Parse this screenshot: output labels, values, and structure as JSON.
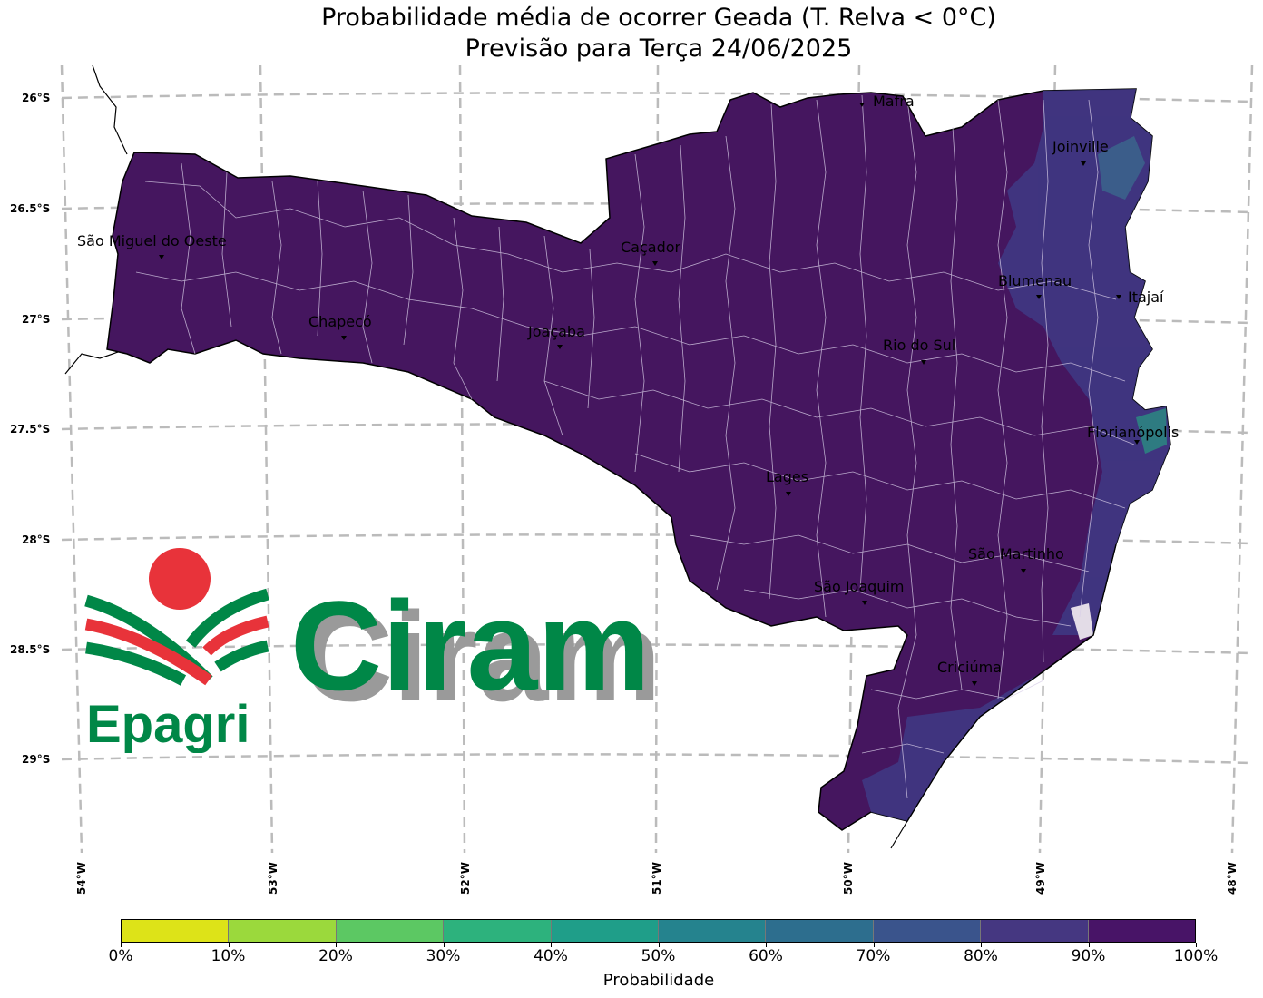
{
  "title": {
    "line1": "Probabilidade média de ocorrer Geada (T. Relva < 0°C)",
    "line2": "Previsão para Terça 24/06/2025"
  },
  "axes": {
    "lat_labels": [
      "26°S",
      "26.5°S",
      "27°S",
      "27.5°S",
      "28°S",
      "28.5°S",
      "29°S"
    ],
    "lon_labels": [
      "54°W",
      "53°W",
      "52°W",
      "51°W",
      "50°W",
      "49°W",
      "48°W"
    ]
  },
  "cities": [
    {
      "name": "Mafra"
    },
    {
      "name": "Joinville"
    },
    {
      "name": "São Miguel do Oeste"
    },
    {
      "name": "Caçador"
    },
    {
      "name": "Blumenau"
    },
    {
      "name": "Itajaí"
    },
    {
      "name": "Chapecó"
    },
    {
      "name": "Joaçaba"
    },
    {
      "name": "Rio do Sul"
    },
    {
      "name": "Florianópolis"
    },
    {
      "name": "Lages"
    },
    {
      "name": "São Martinho"
    },
    {
      "name": "São Joaquim"
    },
    {
      "name": "Criciúma"
    }
  ],
  "colorbar": {
    "label": "Probabilidade",
    "ticks": [
      "0%",
      "10%",
      "20%",
      "30%",
      "40%",
      "50%",
      "60%",
      "70%",
      "80%",
      "90%",
      "100%"
    ],
    "colors": [
      "#dde318",
      "#9bd93c",
      "#5cc863",
      "#2db27d",
      "#1f9e89",
      "#25838e",
      "#2d6e8e",
      "#3a548c",
      "#453781",
      "#481467"
    ]
  },
  "logo": {
    "brand": "Ciram",
    "org": "Epagri",
    "red": "#e8333a",
    "green": "#008747"
  },
  "map_colors": {
    "fill_main": "#45165f",
    "fill_coast": "#3f3a85",
    "grid": "#bbbbbb"
  }
}
